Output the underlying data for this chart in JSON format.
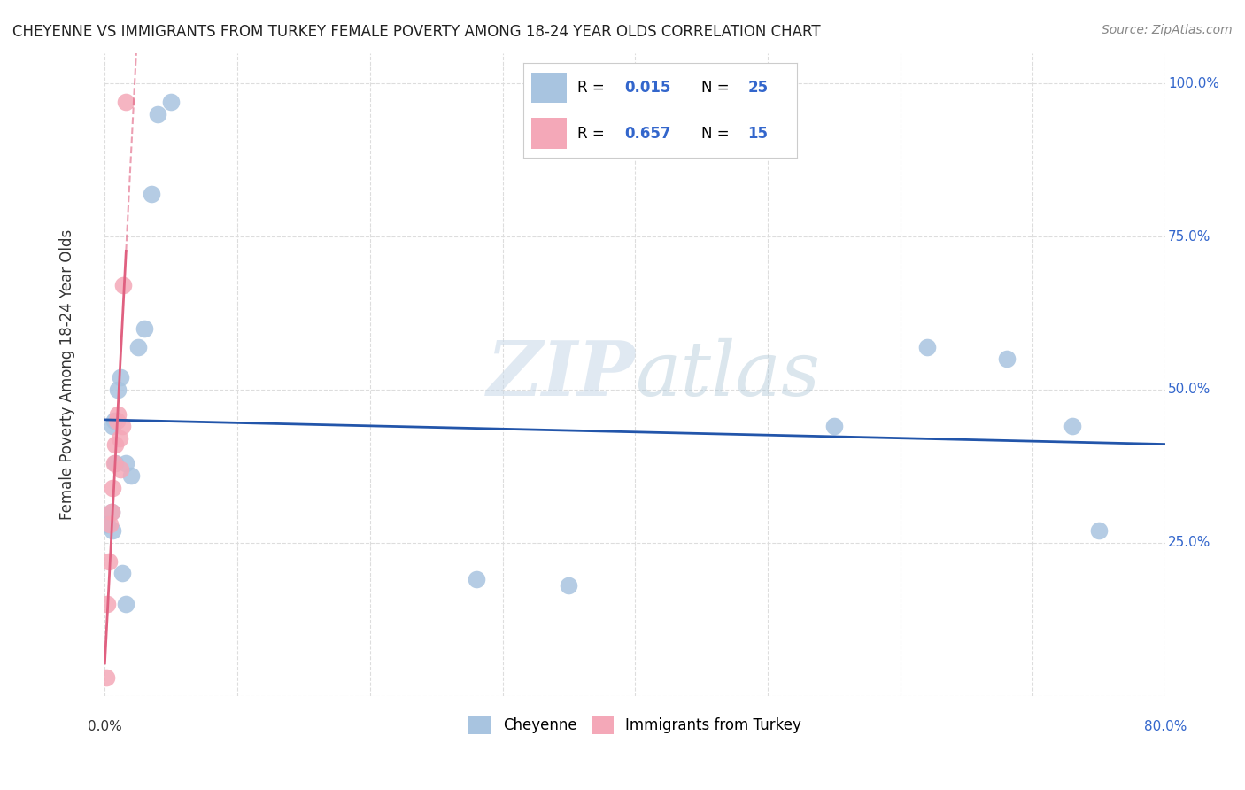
{
  "title": "CHEYENNE VS IMMIGRANTS FROM TURKEY FEMALE POVERTY AMONG 18-24 YEAR OLDS CORRELATION CHART",
  "source": "Source: ZipAtlas.com",
  "ylabel": "Female Poverty Among 18-24 Year Olds",
  "r_cheyenne": 0.015,
  "n_cheyenne": 25,
  "r_turkey": 0.657,
  "n_turkey": 15,
  "cheyenne_color": "#a8c4e0",
  "turkey_color": "#f4a8b8",
  "trend_cheyenne_color": "#2255aa",
  "trend_turkey_color": "#e06080",
  "background": "#ffffff",
  "watermark_zip": "ZIP",
  "watermark_atlas": "atlas",
  "grid_color": "#dddddd",
  "cheyenne_x": [
    0.001,
    0.002,
    0.005,
    0.006,
    0.006,
    0.007,
    0.008,
    0.01,
    0.012,
    0.013,
    0.016,
    0.016,
    0.02,
    0.025,
    0.03,
    0.035,
    0.04,
    0.05,
    0.28,
    0.35,
    0.55,
    0.62,
    0.68,
    0.73,
    0.75
  ],
  "cheyenne_y": [
    0.28,
    0.28,
    0.3,
    0.27,
    0.44,
    0.45,
    0.38,
    0.5,
    0.52,
    0.2,
    0.15,
    0.38,
    0.36,
    0.57,
    0.6,
    0.82,
    0.95,
    0.97,
    0.19,
    0.18,
    0.44,
    0.57,
    0.55,
    0.44,
    0.27
  ],
  "turkey_x": [
    0.001,
    0.002,
    0.003,
    0.004,
    0.005,
    0.006,
    0.007,
    0.008,
    0.009,
    0.01,
    0.011,
    0.012,
    0.013,
    0.014,
    0.016
  ],
  "turkey_y": [
    0.03,
    0.15,
    0.22,
    0.28,
    0.3,
    0.34,
    0.38,
    0.41,
    0.45,
    0.46,
    0.42,
    0.37,
    0.44,
    0.67,
    0.97
  ],
  "xlim": [
    0,
    0.8
  ],
  "ylim": [
    0,
    1.05
  ],
  "ytick_values": [
    0.0,
    0.25,
    0.5,
    0.75,
    1.0
  ],
  "ytick_labels": [
    "",
    "25.0%",
    "50.0%",
    "75.0%",
    "100.0%"
  ],
  "right_label_color": "#3366cc",
  "axis_label_color": "#333333"
}
